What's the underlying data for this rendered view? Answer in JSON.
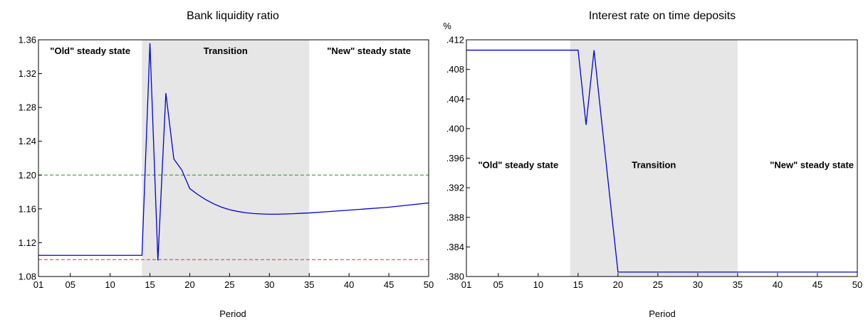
{
  "charts": [
    {
      "type": "line",
      "title": "Bank liquidity ratio",
      "unit": "",
      "xlabel": "Period",
      "xlim": [
        1,
        50
      ],
      "ylim": [
        1.08,
        1.36
      ],
      "x_ticks": [
        1,
        5,
        10,
        15,
        20,
        25,
        30,
        35,
        40,
        45,
        50
      ],
      "x_tick_labels": [
        "01",
        "05",
        "10",
        "15",
        "20",
        "25",
        "30",
        "35",
        "40",
        "45",
        "50"
      ],
      "y_ticks": [
        1.08,
        1.12,
        1.16,
        1.2,
        1.24,
        1.28,
        1.32,
        1.36
      ],
      "y_tick_labels": [
        "1.08",
        "1.12",
        "1.16",
        "1.20",
        "1.24",
        "1.28",
        "1.32",
        "1.36"
      ],
      "shaded_region": {
        "from": 14,
        "to": 35,
        "color": "#e6e6e6"
      },
      "region_labels": [
        {
          "text": "\"Old\" steady state",
          "x": 7.5,
          "y": 1.347
        },
        {
          "text": "Transition",
          "x": 24.5,
          "y": 1.347
        },
        {
          "text": "\"New\" steady state",
          "x": 42.5,
          "y": 1.347
        }
      ],
      "reference_lines": [
        {
          "y": 1.2,
          "color": "#2e8b2e",
          "style": "dashed"
        },
        {
          "y": 1.1,
          "color": "#e03030",
          "style": "dashed"
        }
      ],
      "series": [
        {
          "color": "#0000dd",
          "points": [
            [
              1,
              1.105
            ],
            [
              14,
              1.105
            ],
            [
              15,
              1.356
            ],
            [
              16,
              1.099
            ],
            [
              17,
              1.297
            ],
            [
              18,
              1.219
            ],
            [
              19,
              1.206
            ],
            [
              20,
              1.184
            ],
            [
              21,
              1.177
            ],
            [
              22,
              1.171
            ],
            [
              23,
              1.166
            ],
            [
              24,
              1.162
            ],
            [
              25,
              1.159
            ],
            [
              26,
              1.157
            ],
            [
              27,
              1.1555
            ],
            [
              28,
              1.1545
            ],
            [
              29,
              1.154
            ],
            [
              30,
              1.1537
            ],
            [
              31,
              1.1537
            ],
            [
              32,
              1.154
            ],
            [
              33,
              1.1543
            ],
            [
              34,
              1.1548
            ],
            [
              35,
              1.1552
            ],
            [
              37,
              1.1565
            ],
            [
              40,
              1.1585
            ],
            [
              45,
              1.162
            ],
            [
              50,
              1.167
            ]
          ]
        }
      ]
    },
    {
      "type": "line",
      "title": "Interest rate on time deposits",
      "unit": "%",
      "xlabel": "Period",
      "xlim": [
        1,
        50
      ],
      "ylim": [
        0.38,
        0.412
      ],
      "x_ticks": [
        1,
        5,
        10,
        15,
        20,
        25,
        30,
        35,
        40,
        45,
        50
      ],
      "x_tick_labels": [
        "01",
        "05",
        "10",
        "15",
        "20",
        "25",
        "30",
        "35",
        "40",
        "45",
        "50"
      ],
      "y_ticks": [
        0.38,
        0.384,
        0.388,
        0.392,
        0.396,
        0.4,
        0.404,
        0.408,
        0.412
      ],
      "y_tick_labels": [
        ".380",
        ".384",
        ".388",
        ".392",
        ".396",
        ".400",
        ".404",
        ".408",
        ".412"
      ],
      "shaded_region": {
        "from": 14,
        "to": 35,
        "color": "#e6e6e6"
      },
      "region_labels": [
        {
          "text": "\"Old\" steady state",
          "x": 7.5,
          "y": 0.3951
        },
        {
          "text": "Transition",
          "x": 24.5,
          "y": 0.3951
        },
        {
          "text": "\"New\" steady state",
          "x": 44.3,
          "y": 0.3951
        }
      ],
      "reference_lines": [],
      "series": [
        {
          "color": "#0000dd",
          "points": [
            [
              1,
              0.4106
            ],
            [
              15,
              0.4106
            ],
            [
              16,
              0.4005
            ],
            [
              17,
              0.4106
            ],
            [
              18,
              0.4005
            ],
            [
              19,
              0.3905
            ],
            [
              20,
              0.3806
            ],
            [
              25,
              0.3806
            ],
            [
              30,
              0.3806
            ],
            [
              35,
              0.3806
            ],
            [
              40,
              0.3806
            ],
            [
              45,
              0.3806
            ],
            [
              50,
              0.3806
            ]
          ]
        }
      ]
    }
  ]
}
